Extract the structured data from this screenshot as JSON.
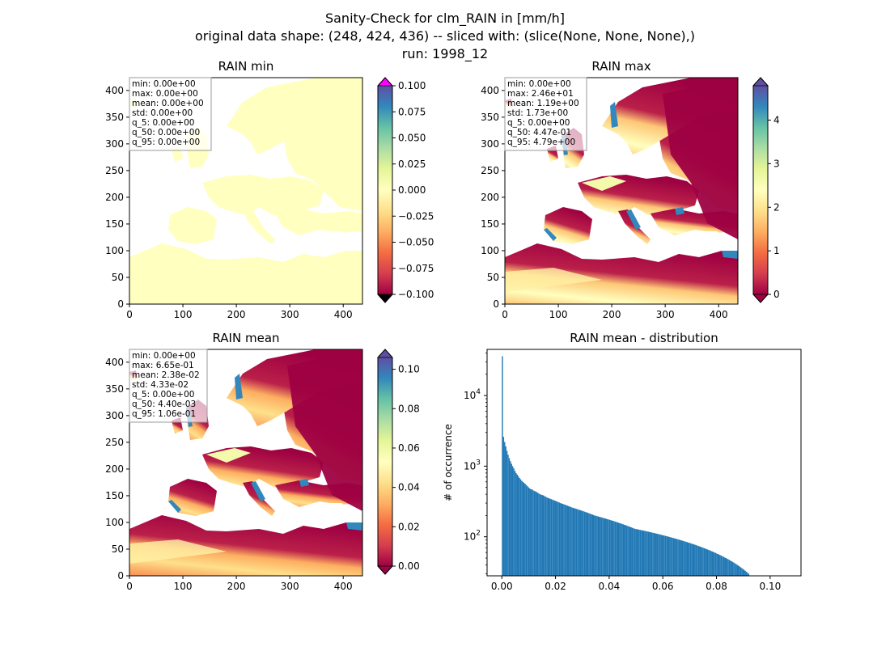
{
  "figure": {
    "title_lines": [
      "Sanity-Check for clm_RAIN in [mm/h]",
      "original data shape: (248, 424, 436) -- sliced with: (slice(None, None, None),)",
      "run: 1998_12"
    ]
  },
  "colors": {
    "colormap": [
      "#9e0142",
      "#d53e4f",
      "#f46d43",
      "#fdae61",
      "#fee08b",
      "#ffffbf",
      "#e6f598",
      "#abdda4",
      "#66c2a5",
      "#3288bd",
      "#5e4fa2"
    ],
    "over_min_panel": "#ff00ff",
    "under": "#000000",
    "histogram": "#1f77b4"
  },
  "chart_data": [
    {
      "type": "heatmap",
      "title": "RAIN min",
      "x_ticks": [
        "0",
        "100",
        "200",
        "300",
        "400"
      ],
      "y_ticks": [
        "0",
        "50",
        "100",
        "150",
        "200",
        "250",
        "300",
        "350",
        "400"
      ],
      "xlim": [
        0,
        436
      ],
      "ylim": [
        0,
        424
      ],
      "colorbar": {
        "min": -0.1,
        "max": 0.1,
        "extend": "both",
        "ticks": [
          "−0.100",
          "−0.075",
          "−0.050",
          "−0.025",
          "0.000",
          "0.025",
          "0.050",
          "0.075",
          "0.100"
        ]
      },
      "stats": [
        "min: 0.00e+00",
        "max: 0.00e+00",
        "mean: 0.00e+00",
        "std: 0.00e+00",
        "q_5: 0.00e+00",
        "q_50: 0.00e+00",
        "q_95: 0.00e+00"
      ]
    },
    {
      "type": "heatmap",
      "title": "RAIN max",
      "x_ticks": [
        "0",
        "100",
        "200",
        "300",
        "400"
      ],
      "y_ticks": [
        "0",
        "50",
        "100",
        "150",
        "200",
        "250",
        "300",
        "350",
        "400"
      ],
      "xlim": [
        0,
        436
      ],
      "ylim": [
        0,
        424
      ],
      "colorbar": {
        "min": 0,
        "max": 4.79,
        "extend": "both",
        "ticks": [
          "0",
          "1",
          "2",
          "3",
          "4"
        ]
      },
      "stats": [
        "min: 0.00e+00",
        "max: 2.46e+01",
        "mean: 1.19e+00",
        "std: 1.73e+00",
        "q_5: 0.00e+00",
        "q_50: 4.47e-01",
        "q_95: 4.79e+00"
      ]
    },
    {
      "type": "heatmap",
      "title": "RAIN mean",
      "x_ticks": [
        "0",
        "100",
        "200",
        "300",
        "400"
      ],
      "y_ticks": [
        "0",
        "50",
        "100",
        "150",
        "200",
        "250",
        "300",
        "350",
        "400"
      ],
      "xlim": [
        0,
        436
      ],
      "ylim": [
        0,
        424
      ],
      "colorbar": {
        "min": 0,
        "max": 0.106,
        "extend": "both",
        "ticks": [
          "0.00",
          "0.02",
          "0.04",
          "0.06",
          "0.08",
          "0.10"
        ]
      },
      "stats": [
        "min: 0.00e+00",
        "max: 6.65e-01",
        "mean: 2.38e-02",
        "std: 4.33e-02",
        "q_5: 0.00e+00",
        "q_50: 4.40e-03",
        "q_95: 1.06e-01"
      ]
    },
    {
      "type": "bar",
      "title": "RAIN mean - distribution",
      "ylabel": "# of occurrence",
      "yscale": "log",
      "x_ticks": [
        "0.00",
        "0.02",
        "0.04",
        "0.06",
        "0.08",
        "0.10"
      ],
      "y_ticks": [
        "10^2",
        "10^3",
        "10^4"
      ],
      "xlim": [
        -0.0055,
        0.1115
      ],
      "ylim": [
        28,
        45000
      ],
      "bins": {
        "start": 0.0,
        "width": 0.000425
      },
      "values": [
        36000,
        2600,
        2200,
        1900,
        1650,
        1450,
        1300,
        1180,
        1080,
        1000,
        930,
        860,
        800,
        760,
        720,
        680,
        650,
        620,
        600,
        580,
        560,
        540,
        520,
        500,
        485,
        470,
        470,
        455,
        445,
        440,
        430,
        420,
        410,
        400,
        395,
        390,
        385,
        375,
        370,
        360,
        355,
        350,
        345,
        340,
        335,
        330,
        325,
        320,
        315,
        310,
        305,
        300,
        296,
        292,
        288,
        284,
        280,
        276,
        272,
        268,
        264,
        260,
        257,
        254,
        251,
        248,
        245,
        242,
        239,
        236,
        233,
        230,
        227,
        224,
        221,
        218,
        215,
        212,
        209,
        206,
        203,
        200,
        198,
        196,
        194,
        192,
        190,
        188,
        186,
        184,
        182,
        180,
        178,
        176,
        174,
        172,
        170,
        168,
        166,
        164,
        162,
        160,
        158,
        156,
        154,
        152,
        150,
        148,
        146,
        144,
        142,
        140,
        138,
        136,
        134,
        132,
        130,
        129,
        128,
        127,
        126,
        125,
        124,
        123,
        122,
        121,
        120,
        119,
        118,
        117,
        116,
        115,
        114,
        113,
        112,
        111,
        110,
        109,
        108,
        107,
        106,
        105,
        104,
        103,
        102,
        101,
        100,
        99,
        98,
        97,
        96,
        95,
        94,
        93,
        92,
        91,
        90,
        89,
        88,
        87,
        86,
        85,
        84,
        83,
        82,
        81,
        80,
        79,
        78,
        77,
        76,
        75,
        74,
        73,
        72,
        71,
        70,
        69,
        68,
        67,
        66,
        65,
        64,
        63,
        62,
        61,
        60,
        59,
        58,
        57,
        56,
        55,
        54,
        53,
        52,
        51,
        50,
        49,
        48,
        47,
        46,
        45,
        44,
        43,
        42,
        41,
        40,
        39,
        38,
        37,
        36,
        35,
        34,
        33,
        32,
        31,
        30
      ]
    }
  ]
}
